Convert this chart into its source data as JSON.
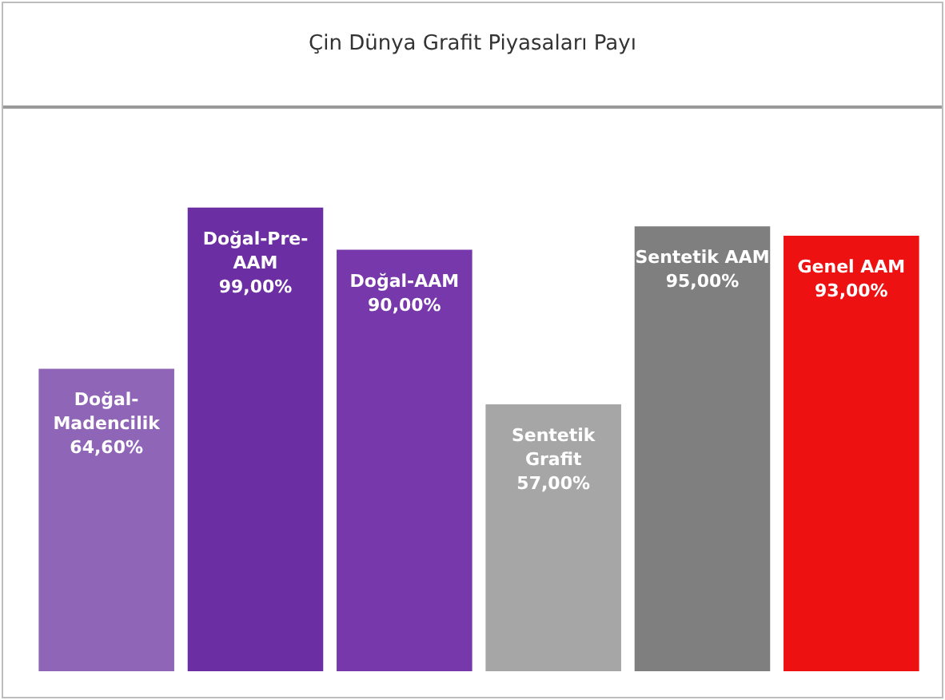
{
  "chart_data": {
    "type": "bar",
    "title": "Çin Dünya Grafit Piyasaları Payı",
    "categories": [
      "Doğal-Madencilik",
      "Doğal-Pre-AAM",
      "Doğal-AAM",
      "Sentetik Grafit",
      "Sentetik AAM",
      "Genel AAM"
    ],
    "values": [
      64.6,
      99,
      90,
      57,
      95,
      93
    ],
    "colors": [
      "#8f65b8",
      "#6b2fa3",
      "#7638aa",
      "#a6a6a6",
      "#7f7f7f",
      "#ee1111"
    ],
    "value_labels": [
      "64,60%",
      "99,00%",
      "90,00%",
      "57,00%",
      "95,00%",
      "93,00%"
    ]
  }
}
